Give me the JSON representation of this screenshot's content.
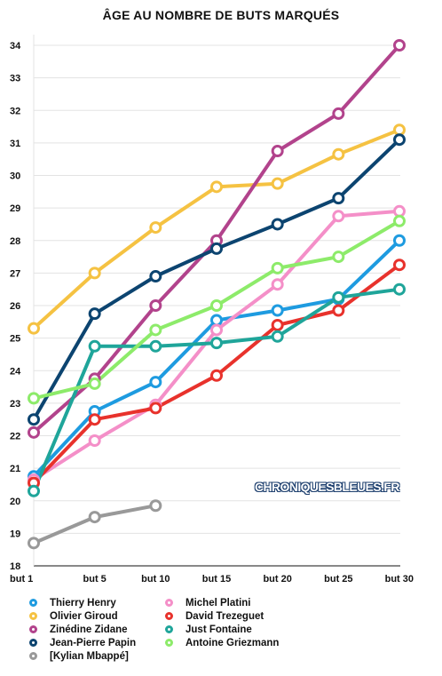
{
  "chart_data": {
    "type": "line",
    "title": "ÂGE AU NOMBRE DE BUTS MARQUÉS",
    "categories": [
      "but 1",
      "but 5",
      "but 10",
      "but 15",
      "but 20",
      "but 25",
      "but 30"
    ],
    "ylim": [
      18,
      34
    ],
    "yticks": [
      18,
      19,
      20,
      21,
      22,
      23,
      24,
      25,
      26,
      27,
      28,
      29,
      30,
      31,
      32,
      33,
      34
    ],
    "grid": "horizontal",
    "legend_position": "bottom",
    "series": [
      {
        "name": "Thierry Henry",
        "color": "#1e9be0",
        "values": [
          20.75,
          22.75,
          23.65,
          25.55,
          25.85,
          26.2,
          28.0
        ]
      },
      {
        "name": "Olivier Giroud",
        "color": "#f5c242",
        "values": [
          25.3,
          27.0,
          28.4,
          29.65,
          29.75,
          30.65,
          31.4
        ]
      },
      {
        "name": "Zinédine Zidane",
        "color": "#b2438c",
        "values": [
          22.1,
          23.75,
          26.0,
          28.0,
          30.75,
          31.9,
          34.0
        ]
      },
      {
        "name": "Jean-Pierre Papin",
        "color": "#0c4470",
        "values": [
          22.5,
          25.75,
          26.9,
          27.75,
          28.5,
          29.3,
          31.1
        ]
      },
      {
        "name": "[Kylian Mbappé]",
        "color": "#999999",
        "values": [
          18.7,
          19.5,
          19.85,
          null,
          null,
          null,
          null
        ]
      },
      {
        "name": "Michel Platini",
        "color": "#f48fc8",
        "values": [
          20.65,
          21.85,
          22.95,
          25.25,
          26.65,
          28.75,
          28.9
        ]
      },
      {
        "name": "David Trezeguet",
        "color": "#e8322c",
        "values": [
          20.55,
          22.5,
          22.85,
          23.85,
          25.4,
          25.85,
          27.25
        ]
      },
      {
        "name": "Just Fontaine",
        "color": "#1fa59a",
        "values": [
          20.3,
          24.75,
          24.75,
          24.85,
          25.05,
          26.25,
          26.5
        ]
      },
      {
        "name": "Antoine Griezmann",
        "color": "#8deb6a",
        "values": [
          23.15,
          23.6,
          25.25,
          26.0,
          27.15,
          27.5,
          28.6
        ]
      }
    ]
  },
  "watermark": "CHRONIQUESBLEUES.FR"
}
